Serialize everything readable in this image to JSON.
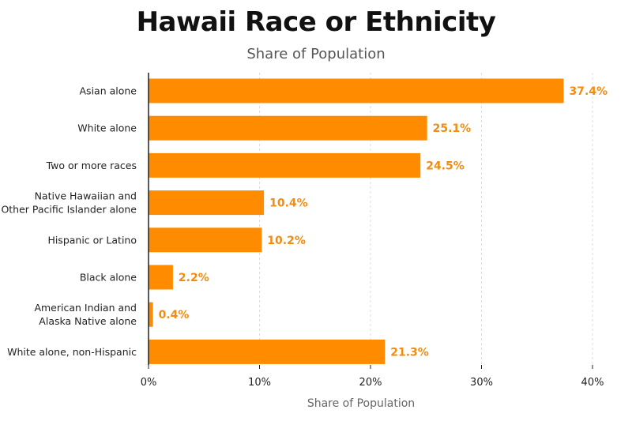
{
  "chart_data": {
    "type": "bar",
    "orientation": "horizontal",
    "title": "Hawaii Race or Ethnicity",
    "subtitle": "Share of Population",
    "xlabel": "Share of Population",
    "ylabel": "",
    "categories": [
      [
        "Asian alone"
      ],
      [
        "White alone"
      ],
      [
        "Two or more races"
      ],
      [
        "Native Hawaiian and",
        "Other Pacific Islander alone"
      ],
      [
        "Hispanic or Latino"
      ],
      [
        "Black alone"
      ],
      [
        "American Indian and",
        "Alaska Native alone"
      ],
      [
        "White alone, non-Hispanic"
      ]
    ],
    "values": [
      37.4,
      25.1,
      24.5,
      10.4,
      10.2,
      2.2,
      0.4,
      21.3
    ],
    "value_labels": [
      "37.4%",
      "25.1%",
      "24.5%",
      "10.4%",
      "10.2%",
      "2.2%",
      "0.4%",
      "21.3%"
    ],
    "xlim": [
      0,
      40
    ],
    "xticks": [
      0,
      10,
      20,
      30,
      40
    ],
    "xtick_labels": [
      "0%",
      "10%",
      "20%",
      "30%",
      "40%"
    ],
    "grid": "vertical dashed",
    "legend": "none",
    "colors": {
      "bar": "#FF8C00",
      "value_label": "#F28C0F",
      "grid": "#dddddd",
      "axis": "#222222"
    }
  }
}
